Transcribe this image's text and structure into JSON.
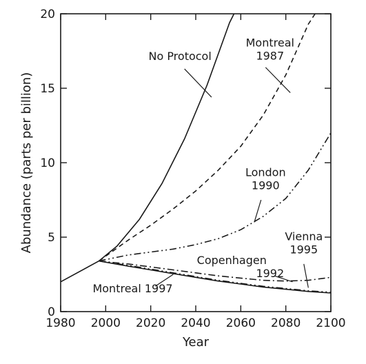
{
  "chart_data": {
    "type": "line",
    "xlabel": "Year",
    "ylabel": "Abundance (parts per billion)",
    "xlim": [
      1980,
      2100
    ],
    "ylim": [
      0,
      20
    ],
    "xticks": [
      1980,
      2000,
      2020,
      2040,
      2060,
      2080,
      2100
    ],
    "yticks": [
      0,
      5,
      10,
      15,
      20
    ],
    "grid": false,
    "series": [
      {
        "name": "No Protocol",
        "style": "solid",
        "x": [
          1980,
          1997,
          2005,
          2015,
          2025,
          2035,
          2045,
          2055,
          2057
        ],
        "y": [
          2.0,
          3.4,
          4.4,
          6.2,
          8.6,
          11.6,
          15.2,
          19.4,
          20.0
        ]
      },
      {
        "name": "Montreal 1987",
        "style": "dashed",
        "x": [
          1997,
          2010,
          2020,
          2030,
          2040,
          2050,
          2060,
          2070,
          2080,
          2090,
          2093
        ],
        "y": [
          3.4,
          4.8,
          5.8,
          6.9,
          8.1,
          9.5,
          11.1,
          13.2,
          15.9,
          19.3,
          20.0
        ]
      },
      {
        "name": "London 1990",
        "style": "dash-dot-dot",
        "x": [
          1997,
          2010,
          2020,
          2030,
          2040,
          2050,
          2060,
          2070,
          2080,
          2090,
          2100
        ],
        "y": [
          3.4,
          3.8,
          4.0,
          4.2,
          4.5,
          4.9,
          5.5,
          6.4,
          7.6,
          9.5,
          12.0
        ]
      },
      {
        "name": "Copenhagen 1992",
        "style": "dash-dot",
        "x": [
          1997,
          2010,
          2020,
          2030,
          2040,
          2050,
          2060,
          2070,
          2080,
          2090,
          2100
        ],
        "y": [
          3.4,
          3.2,
          3.0,
          2.8,
          2.6,
          2.4,
          2.25,
          2.1,
          2.05,
          2.1,
          2.3
        ]
      },
      {
        "name": "Vienna 1995",
        "style": "dash-dot-dot",
        "x": [
          1997,
          2010,
          2020,
          2030,
          2040,
          2050,
          2060,
          2070,
          2080,
          2090,
          2100
        ],
        "y": [
          3.4,
          3.1,
          2.85,
          2.6,
          2.35,
          2.1,
          1.9,
          1.7,
          1.55,
          1.4,
          1.3
        ]
      },
      {
        "name": "Montreal 1997",
        "style": "solid",
        "x": [
          1997,
          2010,
          2020,
          2030,
          2040,
          2050,
          2060,
          2070,
          2080,
          2090,
          2100
        ],
        "y": [
          3.4,
          3.05,
          2.8,
          2.55,
          2.3,
          2.05,
          1.85,
          1.65,
          1.5,
          1.35,
          1.25
        ]
      }
    ],
    "annotations": [
      {
        "lines": [
          "No Protocol"
        ],
        "x": 2033,
        "y": 16.9,
        "anchor": "middle",
        "leader": [
          [
            2035,
            16.3
          ],
          [
            2047,
            14.4
          ]
        ]
      },
      {
        "lines": [
          "Montreal",
          "1987"
        ],
        "x": 2073,
        "y": 17.8,
        "anchor": "middle",
        "leader": [
          [
            2071,
            16.4
          ],
          [
            2082,
            14.7
          ]
        ]
      },
      {
        "lines": [
          "London",
          "1990"
        ],
        "x": 2071,
        "y": 9.1,
        "anchor": "middle",
        "leader": [
          [
            2069,
            7.5
          ],
          [
            2066,
            6.0
          ]
        ]
      },
      {
        "lines": [
          "Vienna",
          "1995"
        ],
        "x": 2088,
        "y": 4.8,
        "anchor": "middle",
        "leader": [
          [
            2088,
            3.2
          ],
          [
            2090,
            1.6
          ]
        ]
      },
      {
        "lines": [
          "Copenhagen",
          "1992"
        ],
        "x": 2056,
        "y": 3.2,
        "anchor": "middle",
        "secondLineX": 2073,
        "leader": [
          [
            2075,
            2.4
          ],
          [
            2083,
            2.0
          ]
        ]
      },
      {
        "lines": [
          "Montreal 1997"
        ],
        "x": 2012,
        "y": 1.3,
        "anchor": "middle",
        "leader": [
          [
            2022,
            1.7
          ],
          [
            2030,
            2.5
          ]
        ]
      }
    ]
  }
}
